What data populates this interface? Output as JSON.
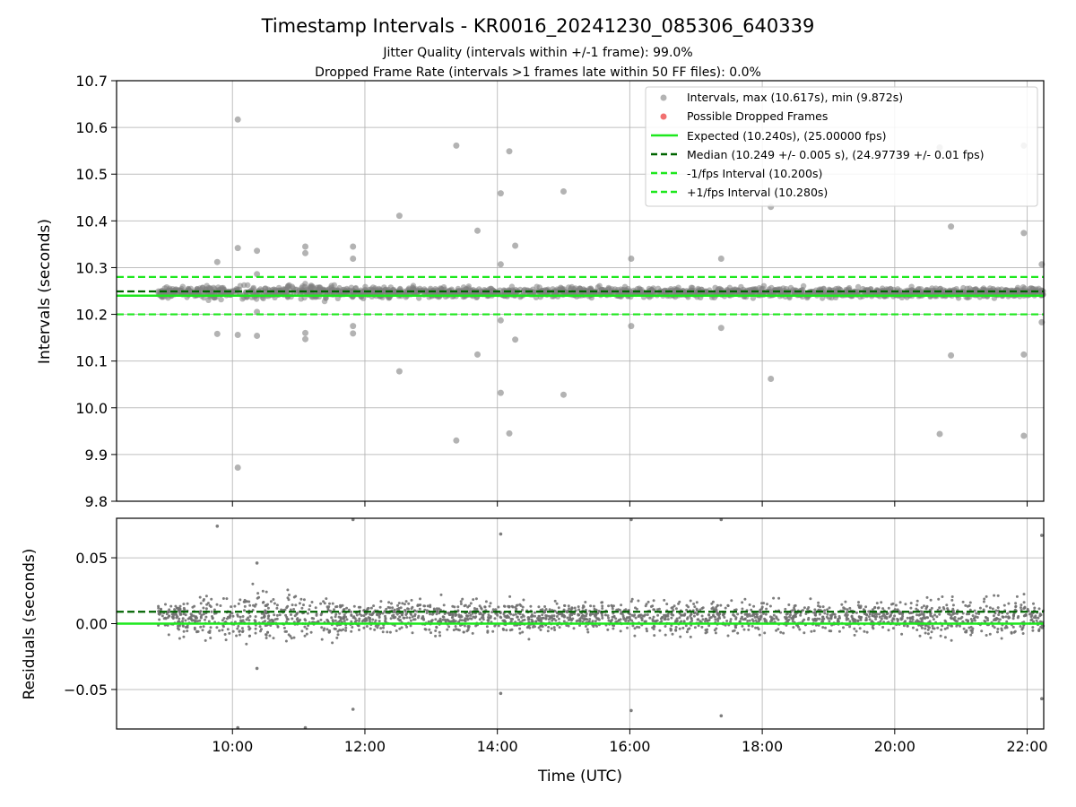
{
  "chart_data": [
    {
      "type": "scatter",
      "title": "Timestamp Intervals - KR0016_20241230_085306_640339",
      "subtitles": [
        "Jitter Quality (intervals within +/-1 frame): 99.0%",
        "Dropped Frame Rate (intervals >1 frames late within 50 FF files): 0.0%"
      ],
      "ylabel": "Intervals (seconds)",
      "xlabel": "",
      "x_unit": "hours UTC",
      "xlim": [
        8.25,
        22.25
      ],
      "ylim": [
        9.8,
        10.7
      ],
      "x_ticks": [
        "10:00",
        "12:00",
        "14:00",
        "16:00",
        "18:00",
        "20:00",
        "22:00"
      ],
      "x_tick_values": [
        10,
        12,
        14,
        16,
        18,
        20,
        22
      ],
      "y_ticks": [
        "9.8",
        "9.9",
        "10.0",
        "10.1",
        "10.2",
        "10.3",
        "10.4",
        "10.5",
        "10.6",
        "10.7"
      ],
      "y_tick_values": [
        9.8,
        9.9,
        10.0,
        10.1,
        10.2,
        10.3,
        10.4,
        10.5,
        10.6,
        10.7
      ],
      "grid": true,
      "legend_position": "top-right",
      "legend": [
        "Intervals, max (10.617s), min (9.872s)",
        "Possible Dropped Frames",
        "Expected (10.240s), (25.00000 fps)",
        "Median (10.249 +/- 0.005 s), (24.97739 +/- 0.01 fps)",
        "-1/fps Interval (10.200s)",
        "+1/fps Interval (10.280s)"
      ],
      "colors": {
        "intervals": "#808080",
        "dropped": "#f06060",
        "expected": "#1ee81e",
        "median": "#006400",
        "fps_band": "#1ee81e"
      },
      "reference_lines": {
        "expected": 10.24,
        "median": 10.249,
        "minus_one_fps": 10.2,
        "plus_one_fps": 10.28
      },
      "series": [
        {
          "name": "Intervals, max (10.617s), min (9.872s)",
          "x_range": [
            8.88,
            22.25
          ],
          "band_center": 10.247,
          "band_spread": 0.007,
          "outliers": [
            {
              "x": 9.77,
              "y": 10.312
            },
            {
              "x": 9.77,
              "y": 10.158
            },
            {
              "x": 10.08,
              "y": 10.617
            },
            {
              "x": 10.08,
              "y": 10.342
            },
            {
              "x": 10.08,
              "y": 10.156
            },
            {
              "x": 10.08,
              "y": 9.872
            },
            {
              "x": 10.37,
              "y": 10.336
            },
            {
              "x": 10.37,
              "y": 10.286
            },
            {
              "x": 10.37,
              "y": 10.205
            },
            {
              "x": 10.37,
              "y": 10.154
            },
            {
              "x": 11.1,
              "y": 10.345
            },
            {
              "x": 11.1,
              "y": 10.331
            },
            {
              "x": 11.1,
              "y": 10.16
            },
            {
              "x": 11.1,
              "y": 10.147
            },
            {
              "x": 11.82,
              "y": 10.345
            },
            {
              "x": 11.82,
              "y": 10.319
            },
            {
              "x": 11.82,
              "y": 10.175
            },
            {
              "x": 11.82,
              "y": 10.159
            },
            {
              "x": 12.52,
              "y": 10.411
            },
            {
              "x": 12.52,
              "y": 10.078
            },
            {
              "x": 13.38,
              "y": 10.561
            },
            {
              "x": 13.38,
              "y": 9.93
            },
            {
              "x": 13.7,
              "y": 10.379
            },
            {
              "x": 13.7,
              "y": 10.114
            },
            {
              "x": 14.05,
              "y": 10.459
            },
            {
              "x": 14.05,
              "y": 10.307
            },
            {
              "x": 14.05,
              "y": 10.187
            },
            {
              "x": 14.05,
              "y": 10.032
            },
            {
              "x": 14.18,
              "y": 10.549
            },
            {
              "x": 14.18,
              "y": 9.945
            },
            {
              "x": 14.27,
              "y": 10.347
            },
            {
              "x": 14.27,
              "y": 10.146
            },
            {
              "x": 15.0,
              "y": 10.463
            },
            {
              "x": 15.0,
              "y": 10.028
            },
            {
              "x": 16.02,
              "y": 10.319
            },
            {
              "x": 16.02,
              "y": 10.175
            },
            {
              "x": 17.38,
              "y": 10.319
            },
            {
              "x": 17.38,
              "y": 10.171
            },
            {
              "x": 18.13,
              "y": 10.43
            },
            {
              "x": 18.13,
              "y": 10.062
            },
            {
              "x": 20.68,
              "y": 10.557
            },
            {
              "x": 20.68,
              "y": 9.944
            },
            {
              "x": 20.85,
              "y": 10.388
            },
            {
              "x": 20.85,
              "y": 10.112
            },
            {
              "x": 21.95,
              "y": 10.561
            },
            {
              "x": 21.95,
              "y": 10.374
            },
            {
              "x": 21.95,
              "y": 10.114
            },
            {
              "x": 21.95,
              "y": 9.94
            },
            {
              "x": 22.22,
              "y": 10.307
            },
            {
              "x": 22.22,
              "y": 10.183
            }
          ]
        }
      ]
    },
    {
      "type": "scatter",
      "title": "",
      "ylabel": "Residuals (seconds)",
      "xlabel": "Time (UTC)",
      "x_unit": "hours UTC",
      "xlim": [
        8.25,
        22.25
      ],
      "ylim": [
        -0.08,
        0.08
      ],
      "x_ticks": [
        "10:00",
        "12:00",
        "14:00",
        "16:00",
        "18:00",
        "20:00",
        "22:00"
      ],
      "x_tick_values": [
        10,
        12,
        14,
        16,
        18,
        20,
        22
      ],
      "y_ticks": [
        "0.05",
        "0.00",
        "−0.05"
      ],
      "y_tick_values": [
        0.05,
        0.0,
        -0.05
      ],
      "grid": true,
      "colors": {
        "points": "#707070",
        "zero_line": "#1ee81e",
        "median_line": "#006400"
      },
      "reference_lines": {
        "zero": 0.0,
        "median": 0.009
      },
      "series": [
        {
          "name": "",
          "x_range": [
            8.88,
            22.25
          ],
          "band_center": 0.006,
          "band_spread": 0.006,
          "outliers": [
            {
              "x": 9.77,
              "y": 0.074
            },
            {
              "x": 10.37,
              "y": 0.046
            },
            {
              "x": 10.37,
              "y": -0.034
            },
            {
              "x": 11.82,
              "y": 0.079
            },
            {
              "x": 11.82,
              "y": -0.065
            },
            {
              "x": 14.05,
              "y": 0.068
            },
            {
              "x": 14.05,
              "y": -0.053
            },
            {
              "x": 16.02,
              "y": 0.079
            },
            {
              "x": 16.02,
              "y": -0.066
            },
            {
              "x": 17.38,
              "y": 0.079
            },
            {
              "x": 17.38,
              "y": -0.07
            },
            {
              "x": 22.22,
              "y": 0.067
            },
            {
              "x": 22.22,
              "y": -0.057
            },
            {
              "x": 10.08,
              "y": -0.079
            },
            {
              "x": 11.1,
              "y": -0.079
            }
          ]
        }
      ]
    }
  ]
}
